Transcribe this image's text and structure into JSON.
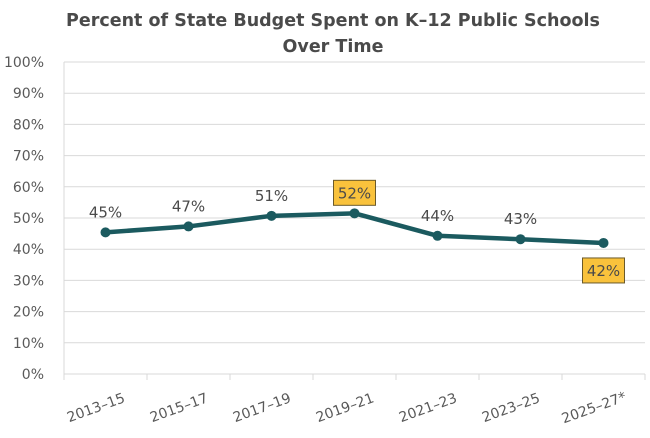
{
  "chart_data": {
    "type": "line",
    "title": "Percent of State Budget Spent on K–12 Public Schools Over Time",
    "title_lines": [
      "Percent of State Budget Spent on K–12 Public Schools",
      "Over Time"
    ],
    "categories": [
      "2013–15",
      "2015–17",
      "2017–19",
      "2019–21",
      "2021–23",
      "2023–25",
      "2025–27*"
    ],
    "values": [
      45.4,
      47.3,
      50.7,
      51.5,
      44.3,
      43.2,
      42.0
    ],
    "data_labels": [
      "45%",
      "47%",
      "51%",
      "52%",
      "44%",
      "43%",
      "42%"
    ],
    "highlighted_labels": [
      "2019–21",
      "2025–27*"
    ],
    "ylim": [
      0,
      100
    ],
    "yticks": [
      "0%",
      "10%",
      "20%",
      "30%",
      "40%",
      "50%",
      "60%",
      "70%",
      "80%",
      "90%",
      "100%"
    ],
    "xlabel": "",
    "ylabel": "",
    "grid": true,
    "colors": {
      "line": "#1b5a5f",
      "highlight": "#f9c23c",
      "grid": "#d9d9d9"
    }
  }
}
